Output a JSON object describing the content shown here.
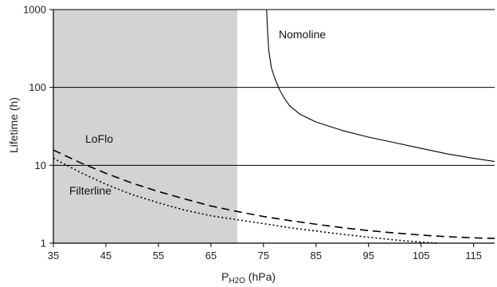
{
  "chart_data": {
    "type": "line",
    "title": "",
    "xlabel_main": "P",
    "xlabel_sub": "H2O",
    "xlabel_unit": " (hPa)",
    "ylabel": "Lifetime (h)",
    "xlim": [
      35,
      119
    ],
    "ylim": [
      1,
      1000
    ],
    "yscale": "log",
    "x_ticks": [
      35,
      45,
      55,
      65,
      75,
      85,
      95,
      105,
      115
    ],
    "y_ticks": [
      1,
      10,
      100,
      1000
    ],
    "y_tick_labels": [
      "1",
      "10",
      "100",
      "1000"
    ],
    "grid": "horizontal at decades",
    "shaded_region": {
      "x": [
        35,
        70
      ],
      "color": "#d3d3d4"
    },
    "series": [
      {
        "name": "Nomoline",
        "style": "solid",
        "color": "#000000",
        "x": [
          75.6,
          75.8,
          76.0,
          76.5,
          77.0,
          77.5,
          78.0,
          79.0,
          80.0,
          82.0,
          85.0,
          90.0,
          95.0,
          100.0,
          105.0,
          110.0,
          115.0,
          119.0
        ],
        "y": [
          1000,
          500,
          300,
          180,
          140,
          115,
          95,
          72,
          58,
          45,
          36,
          28,
          23,
          19.5,
          16.5,
          14,
          12.3,
          11.2
        ]
      },
      {
        "name": "LoFlo",
        "style": "dashed",
        "color": "#000000",
        "x": [
          35,
          40,
          45,
          50,
          55,
          60,
          65,
          70,
          75,
          80,
          85,
          90,
          95,
          100,
          105,
          110,
          115,
          119
        ],
        "y": [
          15.7,
          10.9,
          7.9,
          5.9,
          4.6,
          3.7,
          3.0,
          2.55,
          2.2,
          1.95,
          1.75,
          1.58,
          1.45,
          1.35,
          1.27,
          1.21,
          1.17,
          1.15
        ]
      },
      {
        "name": "Filterline",
        "style": "dotted",
        "color": "#000000",
        "x": [
          35,
          40,
          45,
          50,
          55,
          60,
          65,
          70,
          75,
          80,
          85,
          90,
          95,
          100,
          105,
          108
        ],
        "y": [
          12.3,
          8.2,
          5.7,
          4.2,
          3.3,
          2.65,
          2.25,
          2.0,
          1.78,
          1.58,
          1.43,
          1.3,
          1.19,
          1.1,
          1.03,
          1.0
        ]
      }
    ]
  }
}
